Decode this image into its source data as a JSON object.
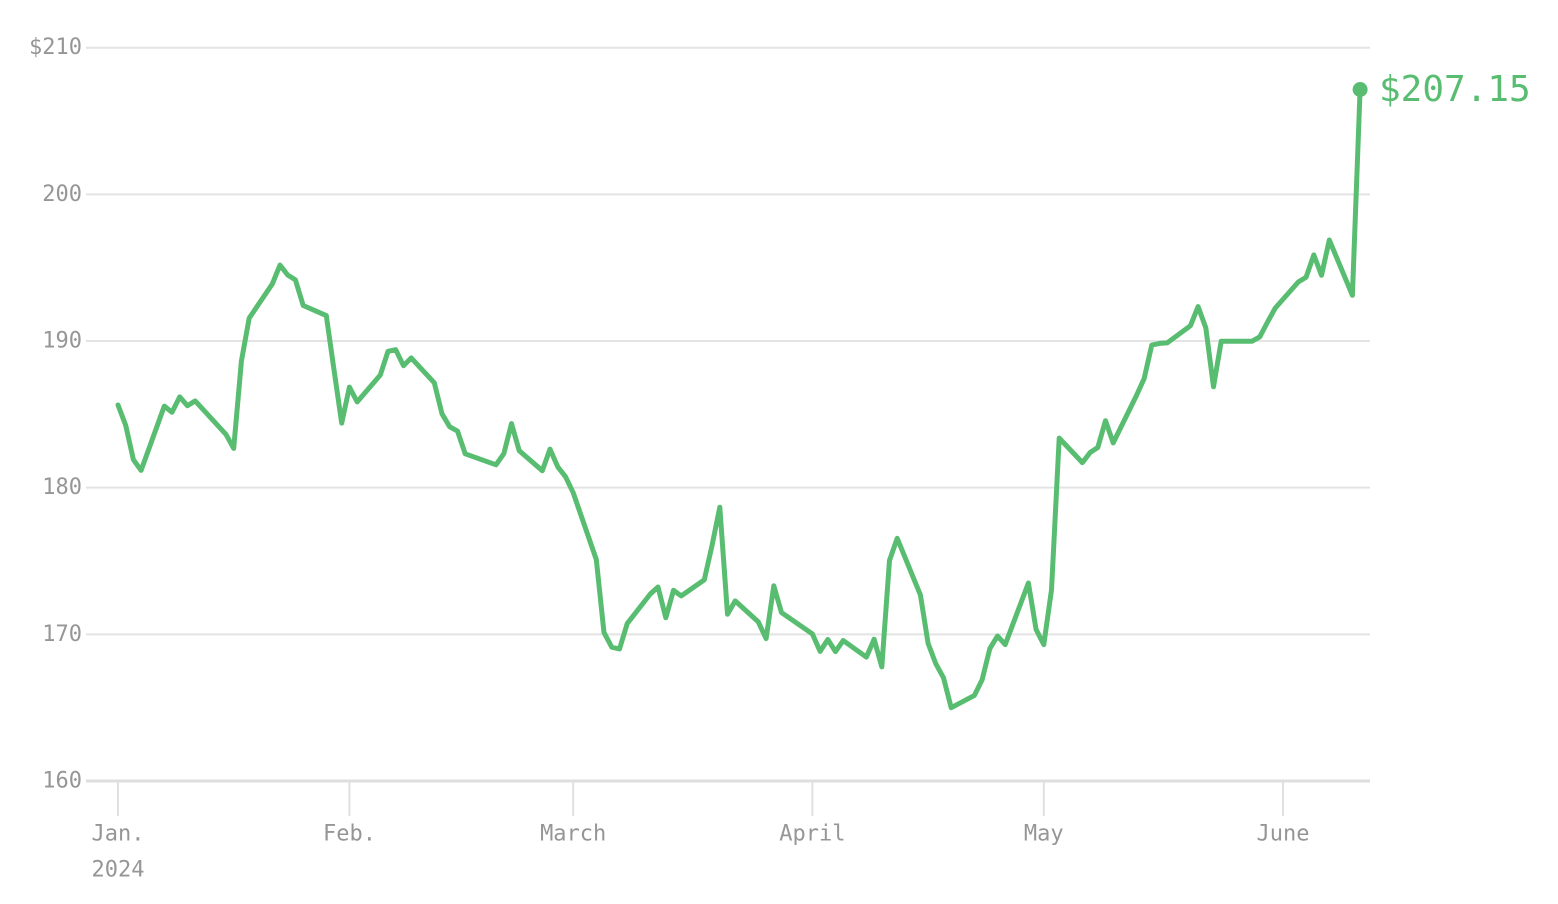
{
  "chart_data": {
    "type": "line",
    "legend": "none",
    "grid": true,
    "colors": {
      "line": "#58bd70",
      "grid": "#e3e3e3",
      "baseline": "#dedede",
      "tick": "#e0e0e0",
      "axis_text": "#969696",
      "background": "#ffffff"
    },
    "y_axis": {
      "min": 160,
      "max": 210,
      "ticks": [
        {
          "value": 210,
          "label": "$210"
        },
        {
          "value": 200,
          "label": "200"
        },
        {
          "value": 190,
          "label": "190"
        },
        {
          "value": 180,
          "label": "180"
        },
        {
          "value": 170,
          "label": "170"
        },
        {
          "value": 160,
          "label": "160"
        }
      ]
    },
    "x_axis": {
      "ticks": [
        {
          "date": "2024-01-02",
          "label": "Jan.",
          "sublabel": "2024"
        },
        {
          "date": "2024-02-01",
          "label": "Feb."
        },
        {
          "date": "2024-03-01",
          "label": "March"
        },
        {
          "date": "2024-04-01",
          "label": "April"
        },
        {
          "date": "2024-05-01",
          "label": "May"
        },
        {
          "date": "2024-06-01",
          "label": "June"
        }
      ]
    },
    "x": [
      "2024-01-02",
      "2024-01-03",
      "2024-01-04",
      "2024-01-05",
      "2024-01-08",
      "2024-01-09",
      "2024-01-10",
      "2024-01-11",
      "2024-01-12",
      "2024-01-16",
      "2024-01-17",
      "2024-01-18",
      "2024-01-19",
      "2024-01-22",
      "2024-01-23",
      "2024-01-24",
      "2024-01-25",
      "2024-01-26",
      "2024-01-29",
      "2024-01-30",
      "2024-01-31",
      "2024-02-01",
      "2024-02-02",
      "2024-02-05",
      "2024-02-06",
      "2024-02-07",
      "2024-02-08",
      "2024-02-09",
      "2024-02-12",
      "2024-02-13",
      "2024-02-14",
      "2024-02-15",
      "2024-02-16",
      "2024-02-20",
      "2024-02-21",
      "2024-02-22",
      "2024-02-23",
      "2024-02-26",
      "2024-02-27",
      "2024-02-28",
      "2024-02-29",
      "2024-03-01",
      "2024-03-04",
      "2024-03-05",
      "2024-03-06",
      "2024-03-07",
      "2024-03-08",
      "2024-03-11",
      "2024-03-12",
      "2024-03-13",
      "2024-03-14",
      "2024-03-15",
      "2024-03-18",
      "2024-03-19",
      "2024-03-20",
      "2024-03-21",
      "2024-03-22",
      "2024-03-25",
      "2024-03-26",
      "2024-03-27",
      "2024-03-28",
      "2024-04-01",
      "2024-04-02",
      "2024-04-03",
      "2024-04-04",
      "2024-04-05",
      "2024-04-08",
      "2024-04-09",
      "2024-04-10",
      "2024-04-11",
      "2024-04-12",
      "2024-04-15",
      "2024-04-16",
      "2024-04-17",
      "2024-04-18",
      "2024-04-19",
      "2024-04-22",
      "2024-04-23",
      "2024-04-24",
      "2024-04-25",
      "2024-04-26",
      "2024-04-29",
      "2024-04-30",
      "2024-05-01",
      "2024-05-02",
      "2024-05-03",
      "2024-05-06",
      "2024-05-07",
      "2024-05-08",
      "2024-05-09",
      "2024-05-10",
      "2024-05-13",
      "2024-05-14",
      "2024-05-15",
      "2024-05-16",
      "2024-05-17",
      "2024-05-20",
      "2024-05-21",
      "2024-05-22",
      "2024-05-23",
      "2024-05-24",
      "2024-05-28",
      "2024-05-29",
      "2024-05-30",
      "2024-05-31",
      "2024-06-03",
      "2024-06-04",
      "2024-06-05",
      "2024-06-06",
      "2024-06-07",
      "2024-06-10",
      "2024-06-11"
    ],
    "series": [
      {
        "name": "price",
        "values": [
          185.64,
          184.25,
          181.91,
          181.18,
          185.56,
          185.14,
          186.19,
          185.59,
          185.92,
          183.63,
          182.68,
          188.63,
          191.56,
          193.89,
          195.18,
          194.5,
          194.17,
          192.42,
          191.73,
          188.04,
          184.4,
          186.86,
          185.85,
          187.68,
          189.3,
          189.41,
          188.32,
          188.85,
          187.15,
          185.04,
          184.15,
          183.86,
          182.31,
          181.56,
          182.32,
          184.37,
          182.52,
          181.16,
          182.63,
          181.42,
          180.75,
          179.66,
          175.1,
          170.12,
          169.12,
          169.0,
          170.73,
          172.75,
          173.23,
          171.13,
          173.0,
          172.62,
          173.72,
          176.08,
          178.67,
          171.37,
          172.28,
          170.85,
          169.71,
          173.31,
          171.48,
          170.03,
          168.84,
          169.65,
          168.82,
          169.58,
          168.45,
          169.67,
          167.78,
          175.04,
          176.55,
          172.69,
          169.38,
          168.0,
          167.04,
          165.0,
          165.84,
          166.9,
          169.02,
          169.89,
          169.3,
          173.5,
          170.33,
          169.3,
          173.03,
          183.38,
          181.71,
          182.4,
          182.74,
          184.57,
          183.05,
          186.28,
          187.43,
          189.72,
          189.84,
          189.87,
          191.04,
          192.35,
          190.9,
          186.88,
          189.98,
          189.99,
          190.29,
          191.29,
          192.25,
          194.03,
          194.35,
          195.87,
          194.48,
          196.89,
          193.12,
          207.15
        ]
      }
    ],
    "end_marker": {
      "label": "$207.15",
      "value": 207.15,
      "date": "2024-06-11"
    }
  }
}
